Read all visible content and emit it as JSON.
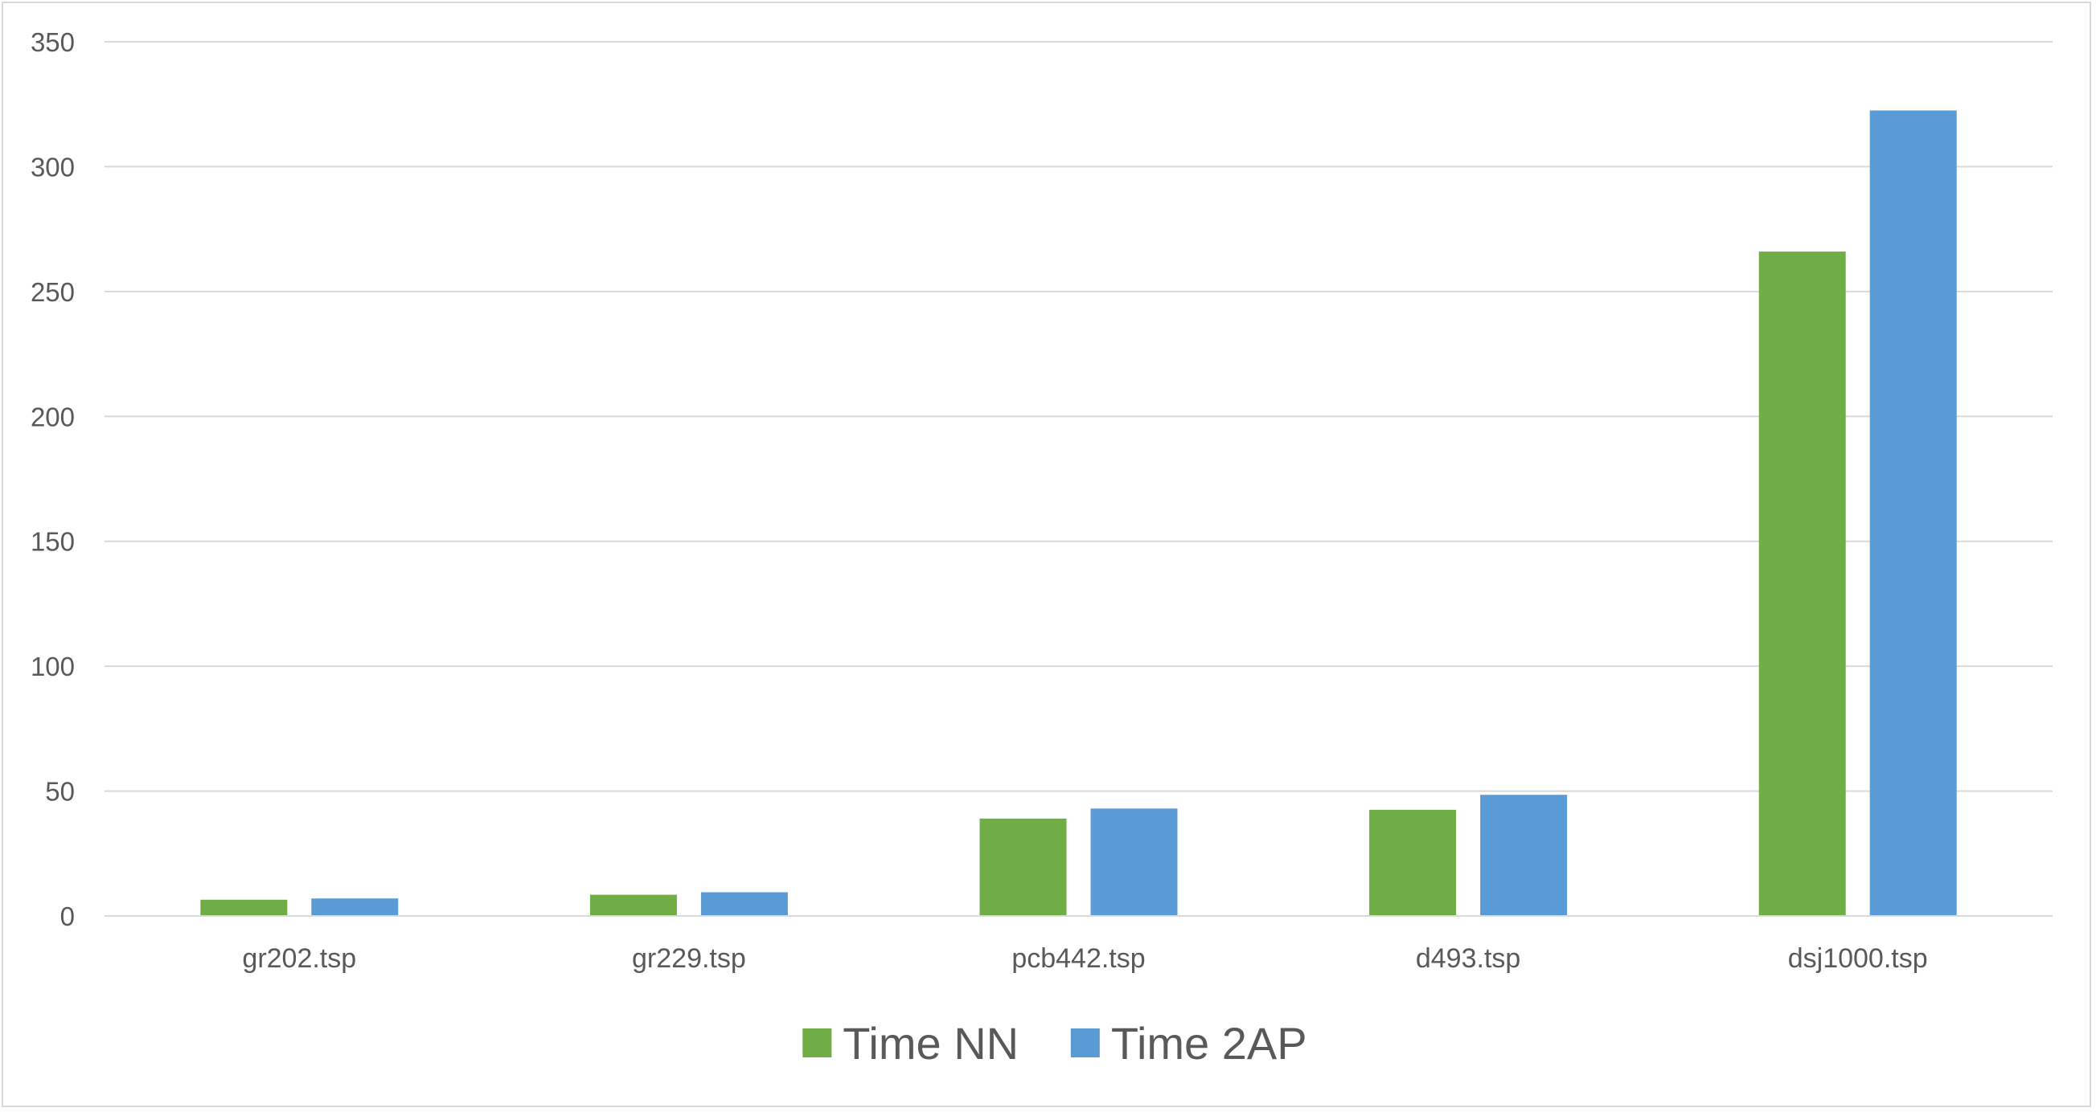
{
  "chart_data": {
    "type": "bar",
    "title": "",
    "xlabel": "",
    "ylabel": "",
    "categories": [
      "gr202.tsp",
      "gr229.tsp",
      "pcb442.tsp",
      "d493.tsp",
      "dsj1000.tsp"
    ],
    "series": [
      {
        "name": "Time NN",
        "color": "#70ad47",
        "values": [
          6.5,
          8.5,
          39,
          42.5,
          266
        ]
      },
      {
        "name": "Time 2AP",
        "color": "#5b9bd5",
        "values": [
          7,
          9.5,
          43,
          48.5,
          322.5
        ]
      }
    ],
    "ylim": [
      0,
      350
    ],
    "yticks": [
      0,
      50,
      100,
      150,
      200,
      250,
      300,
      350
    ],
    "grid": true,
    "gridline_color": "#d9d9d9",
    "legend_position": "bottom"
  }
}
